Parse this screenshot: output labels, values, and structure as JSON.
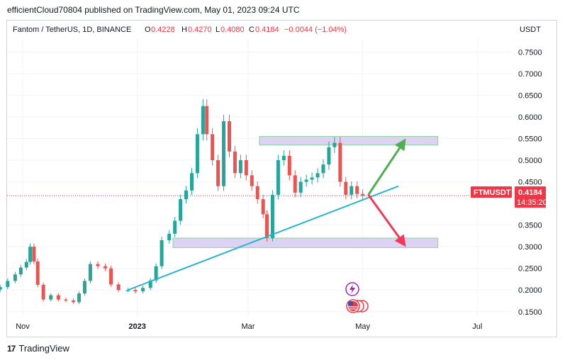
{
  "publish_line": "efficientCloud70804 published on TradingView.com, May 01, 2023 09:24 UTC",
  "footer": {
    "logo_glyph": "17",
    "brand": "TradingView"
  },
  "colors": {
    "up": "#26a69a",
    "down": "#ef5350",
    "trendline": "#26b5cf",
    "zone_fill": "#dcd3f2",
    "zone_border": "#8fd19e",
    "arrow_up": "#4caf50",
    "arrow_down": "#f2395a",
    "price_tag": "#f23645",
    "grid": "#f0f3fa"
  },
  "chart_data": {
    "type": "candlestick",
    "symbol": "Fantom / TetherUS, 1D, BINANCE",
    "ohlc": {
      "O": "0.4228",
      "H": "0.4270",
      "L": "0.4080",
      "C": "0.4184",
      "change": "−0.0044 (−1.04%)"
    },
    "currency": "USDT",
    "y_ticks": [
      "0.7500",
      "0.7000",
      "0.6500",
      "0.6000",
      "0.5500",
      "0.5000",
      "0.4500",
      "0.3500",
      "0.3000",
      "0.2500",
      "0.2000",
      "0.1500"
    ],
    "ylim": [
      0.13,
      0.78
    ],
    "x_ticks": [
      "Nov",
      "2023",
      "Mar",
      "May",
      "Jul"
    ],
    "price_label": {
      "symbol": "FTMUSDT",
      "price": "0.4184",
      "countdown": "14:35:20"
    },
    "zones": [
      {
        "role": "resistance",
        "from": "2023-03-07",
        "to": "2023-06-10",
        "low": 0.535,
        "high": 0.555
      },
      {
        "role": "support",
        "from": "2023-01-20",
        "to": "2023-06-10",
        "low": 0.298,
        "high": 0.32
      }
    ],
    "trendline": {
      "from": {
        "date": "2022-12-27",
        "value": 0.2
      },
      "to": {
        "date": "2023-05-20",
        "value": 0.44
      }
    },
    "arrows": [
      {
        "direction": "up",
        "from": {
          "date": "2023-05-04",
          "value": 0.42
        },
        "to": {
          "date": "2023-05-24",
          "value": 0.55
        }
      },
      {
        "direction": "down",
        "from": {
          "date": "2023-05-04",
          "value": 0.42
        },
        "to": {
          "date": "2023-05-24",
          "value": 0.3
        }
      }
    ],
    "candles": [
      {
        "date": "2022-10-20",
        "close": 0.207
      },
      {
        "date": "2022-10-24",
        "close": 0.221
      },
      {
        "date": "2022-10-28",
        "close": 0.236
      },
      {
        "date": "2022-10-31",
        "close": 0.252
      },
      {
        "date": "2022-11-03",
        "close": 0.265
      },
      {
        "date": "2022-11-05",
        "close": 0.3
      },
      {
        "date": "2022-11-07",
        "close": 0.266
      },
      {
        "date": "2022-11-09",
        "close": 0.212
      },
      {
        "date": "2022-11-12",
        "close": 0.178
      },
      {
        "date": "2022-11-16",
        "close": 0.188
      },
      {
        "date": "2022-11-20",
        "close": 0.178
      },
      {
        "date": "2022-11-24",
        "close": 0.176
      },
      {
        "date": "2022-11-28",
        "close": 0.172
      },
      {
        "date": "2022-12-01",
        "close": 0.192
      },
      {
        "date": "2022-12-04",
        "close": 0.221
      },
      {
        "date": "2022-12-07",
        "close": 0.26
      },
      {
        "date": "2022-12-11",
        "close": 0.255
      },
      {
        "date": "2022-12-15",
        "close": 0.25
      },
      {
        "date": "2022-12-18",
        "close": 0.213
      },
      {
        "date": "2022-12-22",
        "close": 0.2
      },
      {
        "date": "2022-12-27",
        "close": 0.2
      },
      {
        "date": "2022-12-31",
        "close": 0.197
      },
      {
        "date": "2023-01-04",
        "close": 0.205
      },
      {
        "date": "2023-01-08",
        "close": 0.222
      },
      {
        "date": "2023-01-11",
        "close": 0.255
      },
      {
        "date": "2023-01-14",
        "close": 0.315
      },
      {
        "date": "2023-01-18",
        "close": 0.33
      },
      {
        "date": "2023-01-21",
        "close": 0.36
      },
      {
        "date": "2023-01-24",
        "close": 0.41
      },
      {
        "date": "2023-01-27",
        "close": 0.43
      },
      {
        "date": "2023-01-30",
        "close": 0.47
      },
      {
        "date": "2023-02-02",
        "close": 0.56
      },
      {
        "date": "2023-02-05",
        "close": 0.625
      },
      {
        "date": "2023-02-07",
        "close": 0.56
      },
      {
        "date": "2023-02-10",
        "close": 0.5
      },
      {
        "date": "2023-02-13",
        "close": 0.44
      },
      {
        "date": "2023-02-16",
        "close": 0.59
      },
      {
        "date": "2023-02-19",
        "close": 0.52
      },
      {
        "date": "2023-02-22",
        "close": 0.47
      },
      {
        "date": "2023-02-25",
        "close": 0.5
      },
      {
        "date": "2023-02-28",
        "close": 0.465
      },
      {
        "date": "2023-03-03",
        "close": 0.44
      },
      {
        "date": "2023-03-06",
        "close": 0.41
      },
      {
        "date": "2023-03-09",
        "close": 0.375
      },
      {
        "date": "2023-03-11",
        "close": 0.32
      },
      {
        "date": "2023-03-14",
        "close": 0.42
      },
      {
        "date": "2023-03-17",
        "close": 0.5
      },
      {
        "date": "2023-03-20",
        "close": 0.51
      },
      {
        "date": "2023-03-23",
        "close": 0.465
      },
      {
        "date": "2023-03-26",
        "close": 0.425
      },
      {
        "date": "2023-03-29",
        "close": 0.45
      },
      {
        "date": "2023-04-01",
        "close": 0.455
      },
      {
        "date": "2023-04-04",
        "close": 0.46
      },
      {
        "date": "2023-04-07",
        "close": 0.47
      },
      {
        "date": "2023-04-10",
        "close": 0.49
      },
      {
        "date": "2023-04-13",
        "close": 0.53
      },
      {
        "date": "2023-04-16",
        "close": 0.54
      },
      {
        "date": "2023-04-19",
        "close": 0.45
      },
      {
        "date": "2023-04-22",
        "close": 0.42
      },
      {
        "date": "2023-04-25",
        "close": 0.44
      },
      {
        "date": "2023-04-28",
        "close": 0.422
      },
      {
        "date": "2023-05-01",
        "close": 0.418
      }
    ]
  }
}
